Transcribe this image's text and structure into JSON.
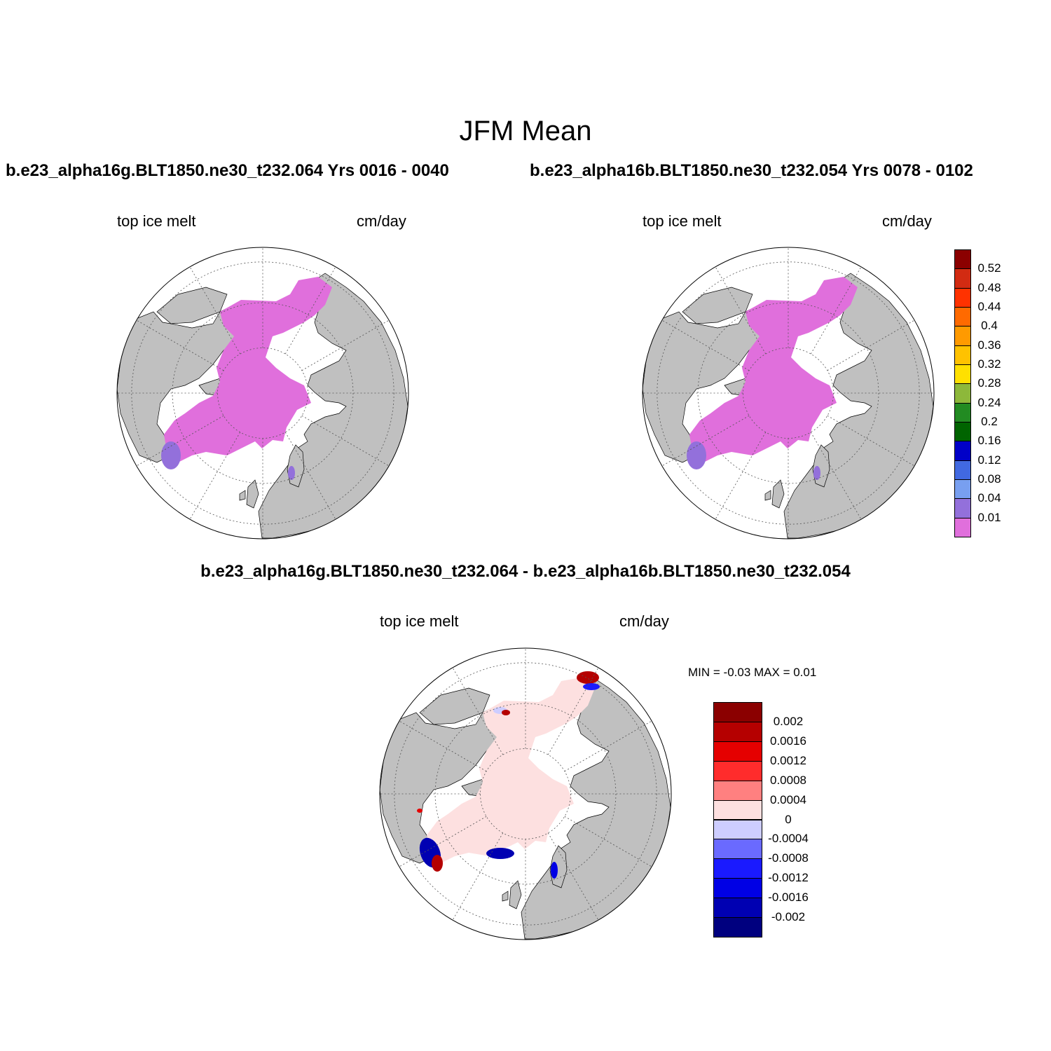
{
  "title": "JFM Mean",
  "panels": [
    {
      "case_title": "b.e23_alpha16g.BLT1850.ne30_t232.064  Yrs 0016 - 0040",
      "left_label": "top ice melt",
      "right_label": "cm/day",
      "field_color": "#e06fdc",
      "edge_color": "#9370db"
    },
    {
      "case_title": "b.e23_alpha16b.BLT1850.ne30_t232.054  Yrs 0078 - 0102",
      "left_label": "top ice melt",
      "right_label": "cm/day",
      "field_color": "#e06fdc",
      "edge_color": "#9370db"
    }
  ],
  "difference": {
    "title": "b.e23_alpha16g.BLT1850.ne30_t232.064 - b.e23_alpha16b.BLT1850.ne30_t232.054",
    "left_label": "top ice melt",
    "right_label": "cm/day",
    "minmax": "MIN =  -0.03 MAX =   0.01",
    "field_color": "#fde0e0"
  },
  "map_colors": {
    "land": "#c0c0c0",
    "ocean": "#ffffff",
    "grid": "#555555"
  },
  "colorbar_top": {
    "colors": [
      "#e06fdc",
      "#9370db",
      "#789ff0",
      "#4169e1",
      "#0000c8",
      "#006400",
      "#228b22",
      "#8db83a",
      "#ffe000",
      "#ffc200",
      "#ff9a00",
      "#ff6a00",
      "#ff3200",
      "#d22b12",
      "#8b0000"
    ],
    "labels": [
      "0.01",
      "0.04",
      "0.08",
      "0.12",
      "0.16",
      "0.2",
      "0.24",
      "0.28",
      "0.32",
      "0.36",
      "0.4",
      "0.44",
      "0.48",
      "0.52"
    ]
  },
  "colorbar_diff": {
    "colors": [
      "#00007f",
      "#0000b2",
      "#0000e5",
      "#1a1aff",
      "#6a6aff",
      "#cdcdff",
      "#fde0e0",
      "#ff8080",
      "#ff2c2c",
      "#e50000",
      "#b50000",
      "#8b0000"
    ],
    "labels": [
      "-0.002",
      "-0.0016",
      "-0.0012",
      "-0.0008",
      "-0.0004",
      "0",
      "0.0004",
      "0.0008",
      "0.0012",
      "0.0016",
      "0.002"
    ]
  }
}
